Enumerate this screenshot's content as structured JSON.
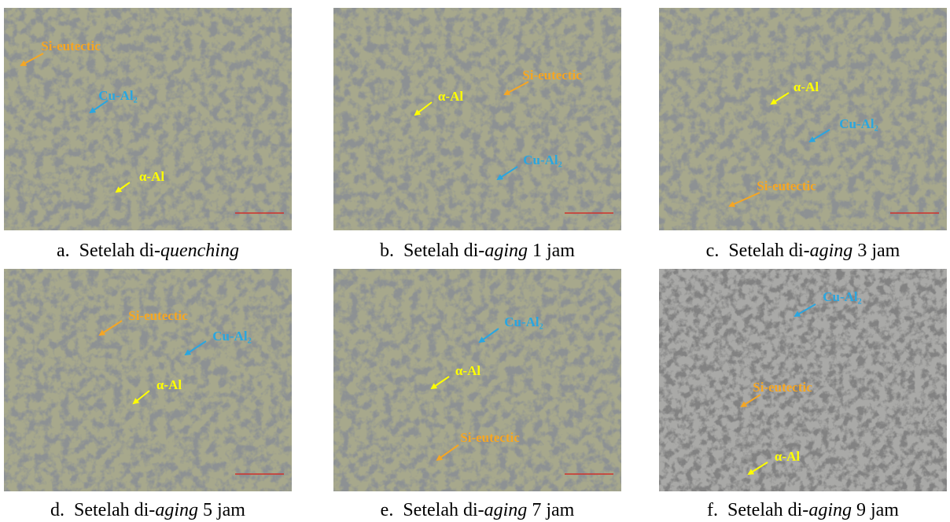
{
  "panels": [
    {
      "letter": "a.",
      "caption": [
        "Setelah di-",
        "quenching"
      ],
      "labels": [
        {
          "text": "Si-eutectic",
          "color": "#f5a623"
        },
        {
          "text": "Cu-Al₂",
          "color": "#2aa6e0"
        },
        {
          "text": "α-Al",
          "color": "#ffff00"
        }
      ]
    },
    {
      "letter": "b.",
      "caption": [
        "Setelah di-",
        "aging",
        "1 jam"
      ],
      "labels": [
        {
          "text": "α-Al",
          "color": "#ffff00"
        },
        {
          "text": "Si-eutectic",
          "color": "#f5a623"
        },
        {
          "text": "Cu-Al₂",
          "color": "#2aa6e0"
        }
      ]
    },
    {
      "letter": "c.",
      "caption": [
        "Setelah di-",
        "aging",
        "3 jam"
      ],
      "labels": [
        {
          "text": "α-Al",
          "color": "#ffff00"
        },
        {
          "text": "Cu-Al₂",
          "color": "#2aa6e0"
        },
        {
          "text": "Si-eutectic",
          "color": "#f5a623"
        }
      ]
    },
    {
      "letter": "d.",
      "caption": [
        "Setelah di-",
        "aging",
        "5 jam"
      ],
      "labels": [
        {
          "text": "Si-eutectic",
          "color": "#f5a623"
        },
        {
          "text": "Cu-Al₂",
          "color": "#2aa6e0"
        },
        {
          "text": "α-Al",
          "color": "#ffff00"
        }
      ]
    },
    {
      "letter": "e.",
      "caption": [
        "Setelah di-",
        "aging",
        "7 jam"
      ],
      "labels": [
        {
          "text": "Cu-Al₂",
          "color": "#2aa6e0"
        },
        {
          "text": "α-Al",
          "color": "#ffff00"
        },
        {
          "text": "Si-eutectic",
          "color": "#f5a623"
        }
      ]
    },
    {
      "letter": "f.",
      "caption": [
        "Setelah di-",
        "aging",
        "9 jam"
      ],
      "labels": [
        {
          "text": "Cu-Al₂",
          "color": "#2aa6e0"
        },
        {
          "text": "Si-eutectic",
          "color": "#f5a623"
        },
        {
          "text": "α-Al",
          "color": "#ffff00"
        }
      ]
    }
  ]
}
